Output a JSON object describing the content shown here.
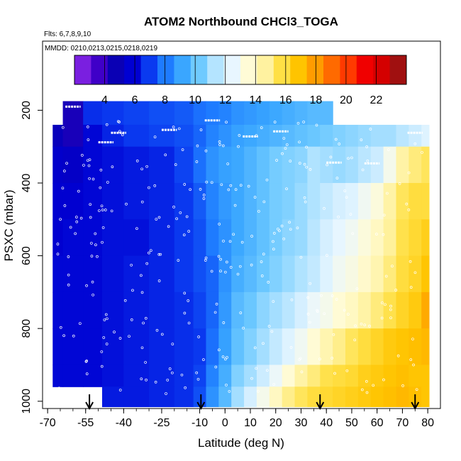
{
  "chart_data": {
    "type": "heatmap",
    "title": "ATOM2 Northbound CHCl3_TOGA",
    "flights_note": "Flts: 6,7,8,9,10",
    "dates_note": "MMDD: 0210,0213,0215,0218,0219",
    "xlabel": "Latitude (deg N)",
    "ylabel": "PSXC (mbar)",
    "xlim": [
      -72,
      85
    ],
    "ylim": [
      1020,
      10
    ],
    "x_ticks": [
      -70,
      -55,
      -40,
      -25,
      -10,
      0,
      10,
      20,
      30,
      40,
      50,
      60,
      70,
      80
    ],
    "y_ticks": [
      200,
      400,
      600,
      800,
      1000
    ],
    "colorbar": {
      "ticks": [
        4,
        6,
        8,
        10,
        12,
        14,
        16,
        18,
        20,
        22
      ],
      "range": [
        2,
        24
      ],
      "colors": [
        "#7a1fe0",
        "#3f00c8",
        "#0a00b4",
        "#0000d2",
        "#0a3af0",
        "#1e7bff",
        "#3aa6ff",
        "#6fcaff",
        "#b4e4ff",
        "#e8f6ff",
        "#fffbd6",
        "#fff2a0",
        "#ffe045",
        "#ffc400",
        "#ff9c00",
        "#ff6a00",
        "#ff3a00",
        "#f00000",
        "#d40000",
        "#a01010"
      ]
    },
    "lat_grid": [
      -68,
      -60,
      -52,
      -45,
      -35,
      -25,
      -15,
      -10,
      -5,
      0,
      5,
      10,
      15,
      20,
      25,
      30,
      35,
      40,
      45,
      50,
      55,
      60,
      65,
      70,
      75,
      80
    ],
    "pressure_levels": [
      {
        "p_top": 175,
        "p_bot": 240,
        "values": [
          null,
          4.0,
          6.4,
          6.6,
          6.8,
          7.0,
          7.2,
          7.6,
          7.8,
          8.0,
          8.4,
          8.6,
          8.8,
          9.0,
          9.2,
          9.4,
          9.6,
          9.6,
          null,
          null,
          null,
          null,
          null,
          null,
          null,
          null
        ]
      },
      {
        "p_top": 240,
        "p_bot": 300,
        "values": [
          4.6,
          4.0,
          5.6,
          6.2,
          6.6,
          6.8,
          7.0,
          7.4,
          8.0,
          8.4,
          8.8,
          9.0,
          9.2,
          9.4,
          9.6,
          9.8,
          10.0,
          10.2,
          10.4,
          10.6,
          10.8,
          11.0,
          11.0,
          11.4,
          11.8,
          12.2
        ]
      },
      {
        "p_top": 300,
        "p_bot": 400,
        "values": [
          5.2,
          5.0,
          5.6,
          5.8,
          6.0,
          6.2,
          6.8,
          7.6,
          8.4,
          8.8,
          9.0,
          9.4,
          9.8,
          10.2,
          10.4,
          10.6,
          11.2,
          11.0,
          10.8,
          11.0,
          11.4,
          11.8,
          13.0,
          14.6,
          15.2,
          15.6
        ]
      },
      {
        "p_top": 400,
        "p_bot": 500,
        "values": [
          5.4,
          5.4,
          5.6,
          5.8,
          6.0,
          6.2,
          6.6,
          7.2,
          8.0,
          8.6,
          9.0,
          9.4,
          9.8,
          10.2,
          10.4,
          10.8,
          11.2,
          11.6,
          12.0,
          12.2,
          12.8,
          13.4,
          14.6,
          15.6,
          16.0,
          16.0
        ]
      },
      {
        "p_top": 500,
        "p_bot": 600,
        "values": [
          5.4,
          5.6,
          5.6,
          5.8,
          5.8,
          6.2,
          6.6,
          7.0,
          7.8,
          8.4,
          9.0,
          9.4,
          9.8,
          10.2,
          10.6,
          10.8,
          11.4,
          12.0,
          12.4,
          12.8,
          13.4,
          14.0,
          14.8,
          15.8,
          16.2,
          16.6
        ]
      },
      {
        "p_top": 600,
        "p_bot": 700,
        "values": [
          5.6,
          5.6,
          5.6,
          5.8,
          6.0,
          6.2,
          6.6,
          7.0,
          7.4,
          8.4,
          9.2,
          9.6,
          10.0,
          10.4,
          10.8,
          11.2,
          11.6,
          12.2,
          12.8,
          13.2,
          13.8,
          14.4,
          15.2,
          16.0,
          16.4,
          17.0
        ]
      },
      {
        "p_top": 700,
        "p_bot": 800,
        "values": [
          5.6,
          5.6,
          5.6,
          5.8,
          6.0,
          6.2,
          6.4,
          6.8,
          7.4,
          8.6,
          9.6,
          10.0,
          10.6,
          11.0,
          11.4,
          12.0,
          12.6,
          13.0,
          13.6,
          14.0,
          14.6,
          15.2,
          15.8,
          16.4,
          16.8,
          17.8
        ]
      },
      {
        "p_top": 800,
        "p_bot": 900,
        "values": [
          5.6,
          5.6,
          5.6,
          5.8,
          6.0,
          6.2,
          6.4,
          6.6,
          7.6,
          8.8,
          9.8,
          10.4,
          11.0,
          11.6,
          12.2,
          12.8,
          13.6,
          14.4,
          15.0,
          15.6,
          16.0,
          16.4,
          16.8,
          17.0,
          17.2,
          17.4
        ]
      },
      {
        "p_top": 900,
        "p_bot": 960,
        "values": [
          5.6,
          5.6,
          5.6,
          5.8,
          6.0,
          6.2,
          6.4,
          6.8,
          8.0,
          9.2,
          10.4,
          11.0,
          11.8,
          12.6,
          13.6,
          14.6,
          15.2,
          15.8,
          16.0,
          16.2,
          16.6,
          16.8,
          17.0,
          17.2,
          17.0,
          17.0
        ]
      },
      {
        "p_top": 960,
        "p_bot": 1015,
        "values": [
          null,
          null,
          null,
          6.0,
          6.0,
          6.2,
          6.4,
          7.0,
          8.4,
          9.6,
          11.0,
          12.0,
          13.0,
          14.0,
          15.0,
          15.6,
          16.0,
          16.2,
          16.4,
          16.6,
          16.8,
          17.0,
          17.2,
          17.4,
          17.2,
          17.0
        ]
      }
    ],
    "arrows_lat": [
      -53.5,
      -9.5,
      37.5,
      75
    ]
  }
}
